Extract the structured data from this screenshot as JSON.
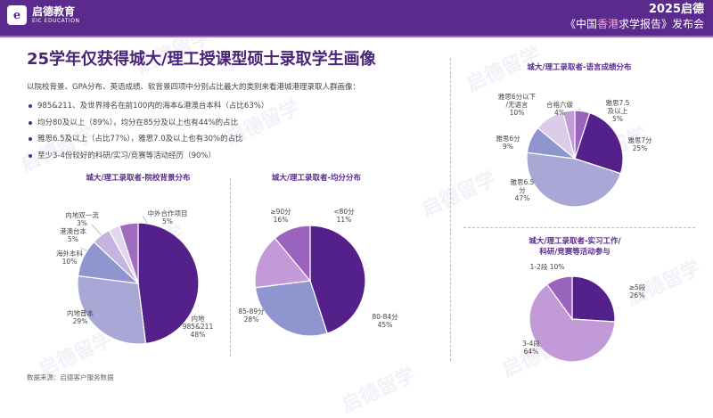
{
  "header": {
    "logo_mark": "e",
    "logo_cn": "启德教育",
    "logo_en": "EIC EDUCATION",
    "event_year": "2025启德",
    "event_name_pre": "《中国",
    "event_name_hl": "香港",
    "event_name_post": "求学报告》发布会",
    "color_bg": "#5a2a8c"
  },
  "title": "25学年仅获得城大/理工授课型硕士录取学生画像",
  "intro": "以院校背景、GPA分布、英语成绩、软背景四项中分别占比最大的类别来看港城港理录取人群画像：",
  "bullets": [
    "985&211、及世界排名在前100内的海本&港澳台本科（占比63%）",
    "均分80及以上（89%），均分在85分及以上也有44%的占比",
    "雅思6.5及以上（占比77%），雅思7.0及以上也有30%的占比",
    "至少3-4份较好的科研/实习/竞赛等活动经历（90%）"
  ],
  "source": "数据来源：启德客户服务数据",
  "watermark": "启德留学",
  "watermark_en": "EIC EDUCATION",
  "chart_data": [
    {
      "type": "pie",
      "title": "城大/理工录取者-院校背景分布",
      "slices": [
        {
          "label": "内地985&211",
          "value": 48,
          "color": "#54218a"
        },
        {
          "label": "内地普本",
          "value": 29,
          "color": "#a9a7d6"
        },
        {
          "label": "海外本科",
          "value": 10,
          "color": "#8e95cf"
        },
        {
          "label": "港澳台本",
          "value": 5,
          "color": "#c5b3e0"
        },
        {
          "label": "内地双一流",
          "value": 3,
          "color": "#e2d5ee"
        },
        {
          "label": "中外合作项目",
          "value": 5,
          "color": "#a06cc0"
        }
      ]
    },
    {
      "type": "pie",
      "title": "城大/理工录取者-均分分布",
      "slices": [
        {
          "label": "80-84分",
          "value": 45,
          "color": "#54218a"
        },
        {
          "label": "85-89分",
          "value": 28,
          "color": "#8e95cf"
        },
        {
          "label": "≥90分",
          "value": 16,
          "color": "#c39ad8"
        },
        {
          "label": "<80分",
          "value": 11,
          "color": "#9a63bd"
        }
      ]
    },
    {
      "type": "pie",
      "title": "城大/理工录取者-语言成绩分布",
      "slices": [
        {
          "label": "雅思7.5及以上",
          "value": 5,
          "color": "#9a63bd"
        },
        {
          "label": "雅思7分",
          "value": 25,
          "color": "#54218a"
        },
        {
          "label": "雅思6.5分",
          "value": 47,
          "color": "#a9a7d6"
        },
        {
          "label": "雅思6分",
          "value": 9,
          "color": "#8e95cf"
        },
        {
          "label": "雅思6分以下/无语言",
          "value": 10,
          "color": "#dccbe9"
        },
        {
          "label": "合格六级",
          "value": 4,
          "color": "#c39ad8"
        }
      ]
    },
    {
      "type": "pie",
      "title": "城大/理工录取者-实习工作/科研/竞赛等活动参与",
      "slices": [
        {
          "label": "≥5段",
          "value": 26,
          "color": "#54218a"
        },
        {
          "label": "3-4段",
          "value": 64,
          "color": "#c39ad8"
        },
        {
          "label": "1-2段",
          "value": 10,
          "color": "#9a63bd"
        }
      ]
    }
  ],
  "labels": {
    "c1": [
      "内地\n985&211\n48%",
      "内地普本\n29%",
      "海外本科\n10%",
      "港澳台本\n5%",
      "内地双一流\n3%",
      "中外合作项目\n5%"
    ],
    "c2": [
      "80-84分\n45%",
      "85-89分\n28%",
      "≥90分\n16%",
      "<80分\n11%"
    ],
    "c3": [
      "雅思7.5\n及以上\n5%",
      "雅思7分\n25%",
      "雅思6.5\n分\n47%",
      "雅思6分\n9%",
      "雅思6分以下\n/无语言\n10%",
      "合格六级\n4%"
    ],
    "c4": [
      "≥5段\n26%",
      "3-4段\n64%",
      "1-2段 10%"
    ],
    "c3_title": "城大/理工录取者-语言成绩分布",
    "c4_title_1": "城大/理工录取者-实习工作/",
    "c4_title_2": "科研/竞赛等活动参与"
  }
}
